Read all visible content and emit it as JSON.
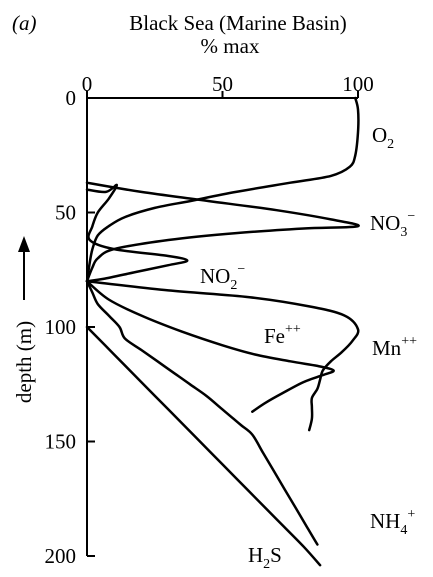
{
  "chart_data": {
    "type": "line",
    "panel_label": "(a)",
    "title": "Black Sea (Marine Basin)",
    "xlabel": "% max",
    "ylabel": "depth (m)",
    "xlim": [
      0,
      100
    ],
    "ylim": [
      200,
      0
    ],
    "x_ticks": [
      0,
      50,
      100
    ],
    "x_tick_labels": [
      "0",
      "50",
      "100"
    ],
    "y_ticks": [
      0,
      50,
      100,
      150,
      200
    ],
    "y_tick_labels": [
      "0",
      "50",
      "100",
      "150",
      "200"
    ],
    "grid": false,
    "legend": "none (series labeled inline)",
    "series": [
      {
        "name": "O2",
        "label_base": "O",
        "label_sub": "2",
        "label_sup": "",
        "values": [
          [
            99,
            0
          ],
          [
            100,
            5
          ],
          [
            100,
            15
          ],
          [
            99,
            25
          ],
          [
            97,
            30
          ],
          [
            90,
            34
          ],
          [
            75,
            37
          ],
          [
            55,
            41
          ],
          [
            38,
            45
          ],
          [
            25,
            48
          ],
          [
            14,
            52
          ],
          [
            8,
            56
          ],
          [
            4,
            60
          ],
          [
            2,
            66
          ],
          [
            1,
            72
          ],
          [
            0,
            80
          ]
        ]
      },
      {
        "name": "NO3−",
        "label_base": "NO",
        "label_sub": "3",
        "label_sup": "−",
        "values": [
          [
            0,
            37
          ],
          [
            20,
            41
          ],
          [
            45,
            45
          ],
          [
            70,
            49
          ],
          [
            90,
            53
          ],
          [
            100,
            56
          ],
          [
            80,
            57
          ],
          [
            55,
            59
          ],
          [
            30,
            62
          ],
          [
            10,
            66
          ],
          [
            4,
            70
          ],
          [
            2,
            74
          ],
          [
            0,
            80
          ]
        ]
      },
      {
        "name": "NO2−",
        "label_base": "NO",
        "label_sub": "2",
        "label_sup": "−",
        "values": [
          [
            0,
            40
          ],
          [
            7,
            41
          ],
          [
            11,
            38
          ],
          [
            8,
            44
          ],
          [
            4,
            50
          ],
          [
            2,
            56
          ],
          [
            1,
            62
          ],
          [
            10,
            66
          ],
          [
            30,
            69
          ],
          [
            37,
            71
          ],
          [
            30,
            73
          ],
          [
            18,
            76
          ],
          [
            6,
            79
          ],
          [
            0,
            80
          ]
        ]
      },
      {
        "name": "Fe++",
        "label_base": "Fe",
        "label_sub": "",
        "label_sup": "++",
        "values": [
          [
            0,
            80
          ],
          [
            8,
            88
          ],
          [
            20,
            95
          ],
          [
            35,
            102
          ],
          [
            50,
            108
          ],
          [
            62,
            112
          ],
          [
            75,
            115
          ],
          [
            85,
            117
          ],
          [
            91,
            119
          ],
          [
            87,
            121
          ],
          [
            80,
            124
          ],
          [
            72,
            129
          ],
          [
            66,
            133
          ],
          [
            61,
            137
          ]
        ]
      },
      {
        "name": "Mn++",
        "label_base": "Mn",
        "label_sub": "",
        "label_sup": "++",
        "values": [
          [
            0,
            80
          ],
          [
            30,
            84
          ],
          [
            60,
            87
          ],
          [
            82,
            91
          ],
          [
            95,
            95
          ],
          [
            100,
            101
          ],
          [
            98,
            106
          ],
          [
            94,
            111
          ],
          [
            90,
            115
          ],
          [
            87,
            119
          ],
          [
            86,
            123
          ],
          [
            85,
            127
          ],
          [
            83,
            131
          ],
          [
            83,
            135
          ],
          [
            83,
            140
          ],
          [
            82,
            145
          ]
        ]
      },
      {
        "name": "NH4+",
        "label_base": "NH",
        "label_sub": "4",
        "label_sup": "+",
        "values": [
          [
            0,
            80
          ],
          [
            2,
            85
          ],
          [
            4,
            90
          ],
          [
            8,
            95
          ],
          [
            12,
            100
          ],
          [
            14,
            105
          ],
          [
            20,
            110
          ],
          [
            26,
            115
          ],
          [
            32,
            120
          ],
          [
            38,
            125
          ],
          [
            44,
            130
          ],
          [
            49,
            135
          ],
          [
            54,
            140
          ],
          [
            57,
            143
          ],
          [
            61,
            147
          ],
          [
            65,
            155
          ],
          [
            69,
            163
          ],
          [
            73,
            171
          ],
          [
            77,
            179
          ],
          [
            81,
            187
          ],
          [
            85,
            195
          ]
        ]
      },
      {
        "name": "H2S",
        "label_base": "H",
        "label_sub": "2",
        "label_sup": "S",
        "values": [
          [
            0,
            100
          ],
          [
            10,
            112
          ],
          [
            20,
            124
          ],
          [
            30,
            136
          ],
          [
            40,
            148
          ],
          [
            50,
            160
          ],
          [
            60,
            172
          ],
          [
            70,
            184
          ],
          [
            80,
            196
          ],
          [
            86,
            204
          ]
        ]
      }
    ]
  }
}
